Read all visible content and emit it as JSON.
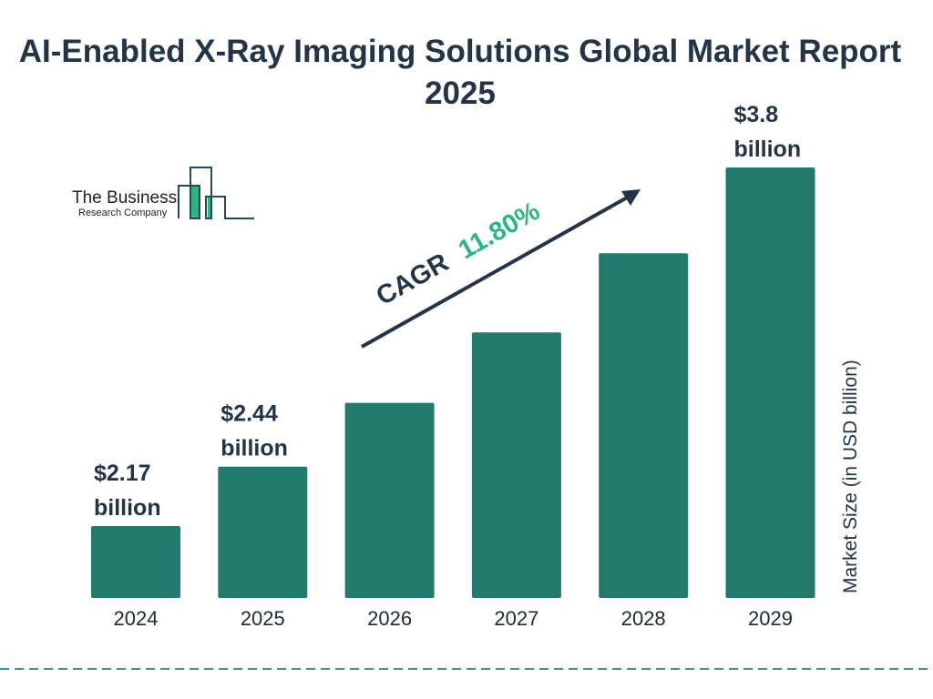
{
  "chart_data": {
    "type": "bar",
    "title": "AI-Enabled X-Ray Imaging Solutions Global Market Report 2025",
    "categories": [
      "2024",
      "2025",
      "2026",
      "2027",
      "2028",
      "2029"
    ],
    "values": [
      2.17,
      2.44,
      2.73,
      3.05,
      3.41,
      3.8
    ],
    "data_labels": [
      {
        "index": 0,
        "line1": "$2.17",
        "line2": "billion"
      },
      {
        "index": 1,
        "line1": "$2.44",
        "line2": "billion"
      },
      {
        "index": 5,
        "line1": "$3.8",
        "line2": "billion"
      }
    ],
    "xlabel": "",
    "ylabel": "Market Size (in USD billion)",
    "annotation": {
      "label": "CAGR",
      "value": "11.80%"
    },
    "grid": false,
    "colors": {
      "bar": "#217a6b",
      "text": "#243447",
      "accent": "#2bb583",
      "divider": "#2a9d8f"
    }
  },
  "logo": {
    "line1": "The Business",
    "line2": "Research Company"
  }
}
